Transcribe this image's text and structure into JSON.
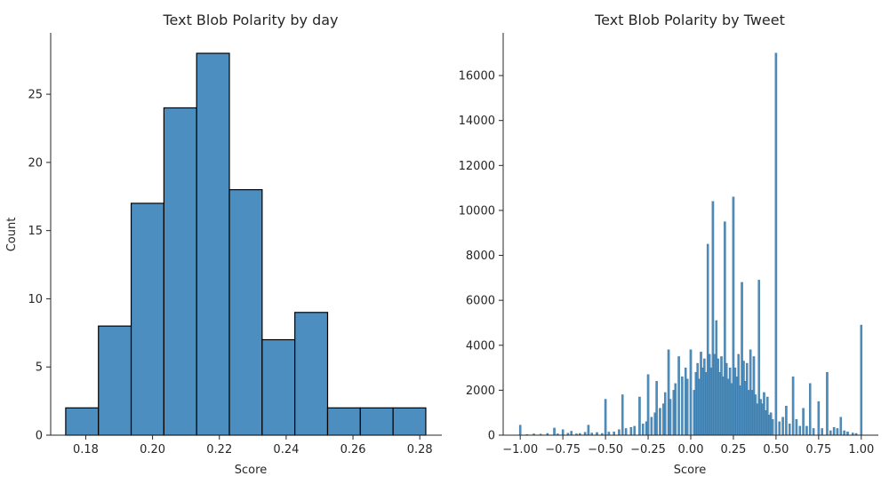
{
  "chart_data": [
    {
      "type": "bar",
      "title": "Text Blob Polarity by day",
      "xlabel": "Score",
      "ylabel": "Count",
      "xlim": [
        0.1695,
        0.2866
      ],
      "ylim": [
        0,
        29.5
      ],
      "xticks": [
        "0.18",
        "0.20",
        "0.22",
        "0.24",
        "0.26",
        "0.28"
      ],
      "yticks": [
        "0",
        "5",
        "10",
        "15",
        "20",
        "25"
      ],
      "bin_edges": [
        0.174,
        0.1838,
        0.1936,
        0.2034,
        0.2132,
        0.223,
        0.2328,
        0.2426,
        0.2524,
        0.2622,
        0.272,
        0.2818
      ],
      "values": [
        2,
        8,
        17,
        24,
        28,
        18,
        7,
        9,
        2,
        2,
        2
      ],
      "bar_color": "#4c8ebf",
      "edge_color": "#000000",
      "grid": false
    },
    {
      "type": "bar",
      "title": "Text Blob Polarity by Tweet",
      "xlabel": "Score",
      "ylabel": "",
      "xlim": [
        -1.1,
        1.1
      ],
      "ylim": [
        0,
        17900
      ],
      "xticks": [
        "−1.00",
        "−0.75",
        "−0.50",
        "−0.25",
        "0.00",
        "0.25",
        "0.50",
        "0.75",
        "1.00"
      ],
      "yticks": [
        "0",
        "2000",
        "4000",
        "6000",
        "8000",
        "10000",
        "12000",
        "14000",
        "16000"
      ],
      "bar_color": "#4c8ebf",
      "edge_color": "#2b5f86",
      "grid": false,
      "bars": [
        {
          "x": -1.0,
          "v": 450
        },
        {
          "x": -0.96,
          "v": 30
        },
        {
          "x": -0.92,
          "v": 60
        },
        {
          "x": -0.88,
          "v": 50
        },
        {
          "x": -0.84,
          "v": 80
        },
        {
          "x": -0.8,
          "v": 320
        },
        {
          "x": -0.78,
          "v": 60
        },
        {
          "x": -0.75,
          "v": 250
        },
        {
          "x": -0.72,
          "v": 90
        },
        {
          "x": -0.7,
          "v": 180
        },
        {
          "x": -0.67,
          "v": 60
        },
        {
          "x": -0.65,
          "v": 80
        },
        {
          "x": -0.62,
          "v": 130
        },
        {
          "x": -0.6,
          "v": 450
        },
        {
          "x": -0.58,
          "v": 100
        },
        {
          "x": -0.55,
          "v": 120
        },
        {
          "x": -0.52,
          "v": 80
        },
        {
          "x": -0.5,
          "v": 1600
        },
        {
          "x": -0.48,
          "v": 140
        },
        {
          "x": -0.45,
          "v": 150
        },
        {
          "x": -0.42,
          "v": 250
        },
        {
          "x": -0.4,
          "v": 1800
        },
        {
          "x": -0.38,
          "v": 300
        },
        {
          "x": -0.35,
          "v": 350
        },
        {
          "x": -0.33,
          "v": 400
        },
        {
          "x": -0.3,
          "v": 1700
        },
        {
          "x": -0.28,
          "v": 500
        },
        {
          "x": -0.26,
          "v": 600
        },
        {
          "x": -0.25,
          "v": 2700
        },
        {
          "x": -0.23,
          "v": 800
        },
        {
          "x": -0.21,
          "v": 1000
        },
        {
          "x": -0.2,
          "v": 2400
        },
        {
          "x": -0.18,
          "v": 1200
        },
        {
          "x": -0.16,
          "v": 1400
        },
        {
          "x": -0.15,
          "v": 1900
        },
        {
          "x": -0.13,
          "v": 3800
        },
        {
          "x": -0.12,
          "v": 1600
        },
        {
          "x": -0.1,
          "v": 2000
        },
        {
          "x": -0.09,
          "v": 2300
        },
        {
          "x": -0.07,
          "v": 3500
        },
        {
          "x": -0.05,
          "v": 2600
        },
        {
          "x": -0.03,
          "v": 3000
        },
        {
          "x": -0.02,
          "v": 2500
        },
        {
          "x": 0.0,
          "v": 3800
        },
        {
          "x": 0.02,
          "v": 2000
        },
        {
          "x": 0.03,
          "v": 2800
        },
        {
          "x": 0.04,
          "v": 3200
        },
        {
          "x": 0.05,
          "v": 2500
        },
        {
          "x": 0.06,
          "v": 3700
        },
        {
          "x": 0.07,
          "v": 3000
        },
        {
          "x": 0.08,
          "v": 3400
        },
        {
          "x": 0.09,
          "v": 2800
        },
        {
          "x": 0.1,
          "v": 8500
        },
        {
          "x": 0.11,
          "v": 3600
        },
        {
          "x": 0.12,
          "v": 3000
        },
        {
          "x": 0.13,
          "v": 10400
        },
        {
          "x": 0.14,
          "v": 3600
        },
        {
          "x": 0.15,
          "v": 5100
        },
        {
          "x": 0.16,
          "v": 3400
        },
        {
          "x": 0.17,
          "v": 2800
        },
        {
          "x": 0.18,
          "v": 3500
        },
        {
          "x": 0.19,
          "v": 2600
        },
        {
          "x": 0.2,
          "v": 9500
        },
        {
          "x": 0.21,
          "v": 3200
        },
        {
          "x": 0.22,
          "v": 2500
        },
        {
          "x": 0.23,
          "v": 3000
        },
        {
          "x": 0.24,
          "v": 2300
        },
        {
          "x": 0.25,
          "v": 10600
        },
        {
          "x": 0.26,
          "v": 3000
        },
        {
          "x": 0.27,
          "v": 2600
        },
        {
          "x": 0.28,
          "v": 3600
        },
        {
          "x": 0.29,
          "v": 2200
        },
        {
          "x": 0.3,
          "v": 6800
        },
        {
          "x": 0.31,
          "v": 3300
        },
        {
          "x": 0.32,
          "v": 2400
        },
        {
          "x": 0.33,
          "v": 3200
        },
        {
          "x": 0.34,
          "v": 2000
        },
        {
          "x": 0.35,
          "v": 3800
        },
        {
          "x": 0.36,
          "v": 2000
        },
        {
          "x": 0.37,
          "v": 3500
        },
        {
          "x": 0.38,
          "v": 1800
        },
        {
          "x": 0.39,
          "v": 1400
        },
        {
          "x": 0.4,
          "v": 6900
        },
        {
          "x": 0.41,
          "v": 1600
        },
        {
          "x": 0.42,
          "v": 1400
        },
        {
          "x": 0.43,
          "v": 1900
        },
        {
          "x": 0.44,
          "v": 1100
        },
        {
          "x": 0.45,
          "v": 1700
        },
        {
          "x": 0.46,
          "v": 900
        },
        {
          "x": 0.47,
          "v": 1000
        },
        {
          "x": 0.48,
          "v": 700
        },
        {
          "x": 0.5,
          "v": 17000
        },
        {
          "x": 0.52,
          "v": 600
        },
        {
          "x": 0.54,
          "v": 800
        },
        {
          "x": 0.56,
          "v": 1300
        },
        {
          "x": 0.58,
          "v": 500
        },
        {
          "x": 0.6,
          "v": 2600
        },
        {
          "x": 0.62,
          "v": 700
        },
        {
          "x": 0.64,
          "v": 400
        },
        {
          "x": 0.66,
          "v": 1200
        },
        {
          "x": 0.68,
          "v": 400
        },
        {
          "x": 0.7,
          "v": 2300
        },
        {
          "x": 0.72,
          "v": 300
        },
        {
          "x": 0.75,
          "v": 1500
        },
        {
          "x": 0.77,
          "v": 300
        },
        {
          "x": 0.8,
          "v": 2800
        },
        {
          "x": 0.82,
          "v": 200
        },
        {
          "x": 0.84,
          "v": 350
        },
        {
          "x": 0.86,
          "v": 300
        },
        {
          "x": 0.88,
          "v": 800
        },
        {
          "x": 0.9,
          "v": 200
        },
        {
          "x": 0.92,
          "v": 150
        },
        {
          "x": 0.95,
          "v": 100
        },
        {
          "x": 0.97,
          "v": 80
        },
        {
          "x": 1.0,
          "v": 4900
        }
      ]
    }
  ]
}
